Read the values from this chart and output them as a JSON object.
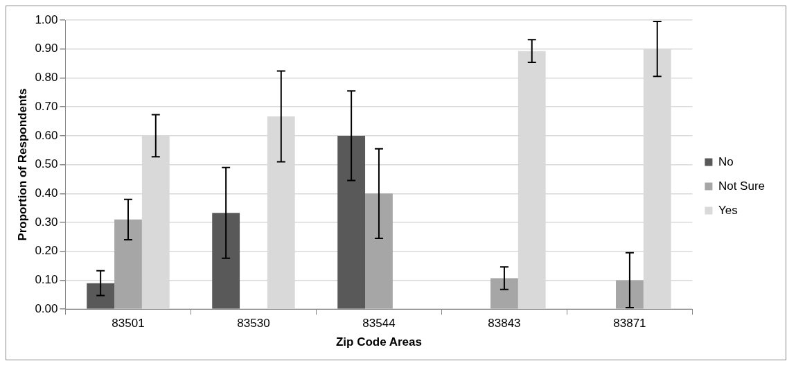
{
  "chart_data": {
    "type": "bar",
    "xlabel": "Zip Code Areas",
    "ylabel": "Proportion of Respondents",
    "categories": [
      "83501",
      "83530",
      "83544",
      "83843",
      "83871"
    ],
    "series": [
      {
        "name": "No",
        "color": "#595959",
        "values": [
          0.09,
          0.333,
          0.6,
          0,
          0
        ],
        "errors": [
          0.043,
          0.157,
          0.155,
          null,
          null
        ]
      },
      {
        "name": "Not Sure",
        "color": "#a6a6a6",
        "values": [
          0.31,
          0,
          0.4,
          0.107,
          0.1
        ],
        "errors": [
          0.07,
          null,
          0.155,
          0.039,
          0.095
        ]
      },
      {
        "name": "Yes",
        "color": "#d9d9d9",
        "values": [
          0.6,
          0.667,
          0,
          0.893,
          0.9
        ],
        "errors": [
          0.073,
          0.157,
          null,
          0.039,
          0.095
        ]
      }
    ],
    "ylim": [
      0,
      1
    ],
    "yticks": [
      {
        "value": 0,
        "label": "0.00"
      },
      {
        "value": 0.1,
        "label": "0.10"
      },
      {
        "value": 0.2,
        "label": "0.20"
      },
      {
        "value": 0.3,
        "label": "0.30"
      },
      {
        "value": 0.4,
        "label": "0.40"
      },
      {
        "value": 0.5,
        "label": "0.50"
      },
      {
        "value": 0.6,
        "label": "0.60"
      },
      {
        "value": 0.7,
        "label": "0.70"
      },
      {
        "value": 0.8,
        "label": "0.80"
      },
      {
        "value": 0.9,
        "label": "0.90"
      },
      {
        "value": 1,
        "label": "1.00"
      }
    ],
    "grid": "y",
    "legend": "right"
  }
}
